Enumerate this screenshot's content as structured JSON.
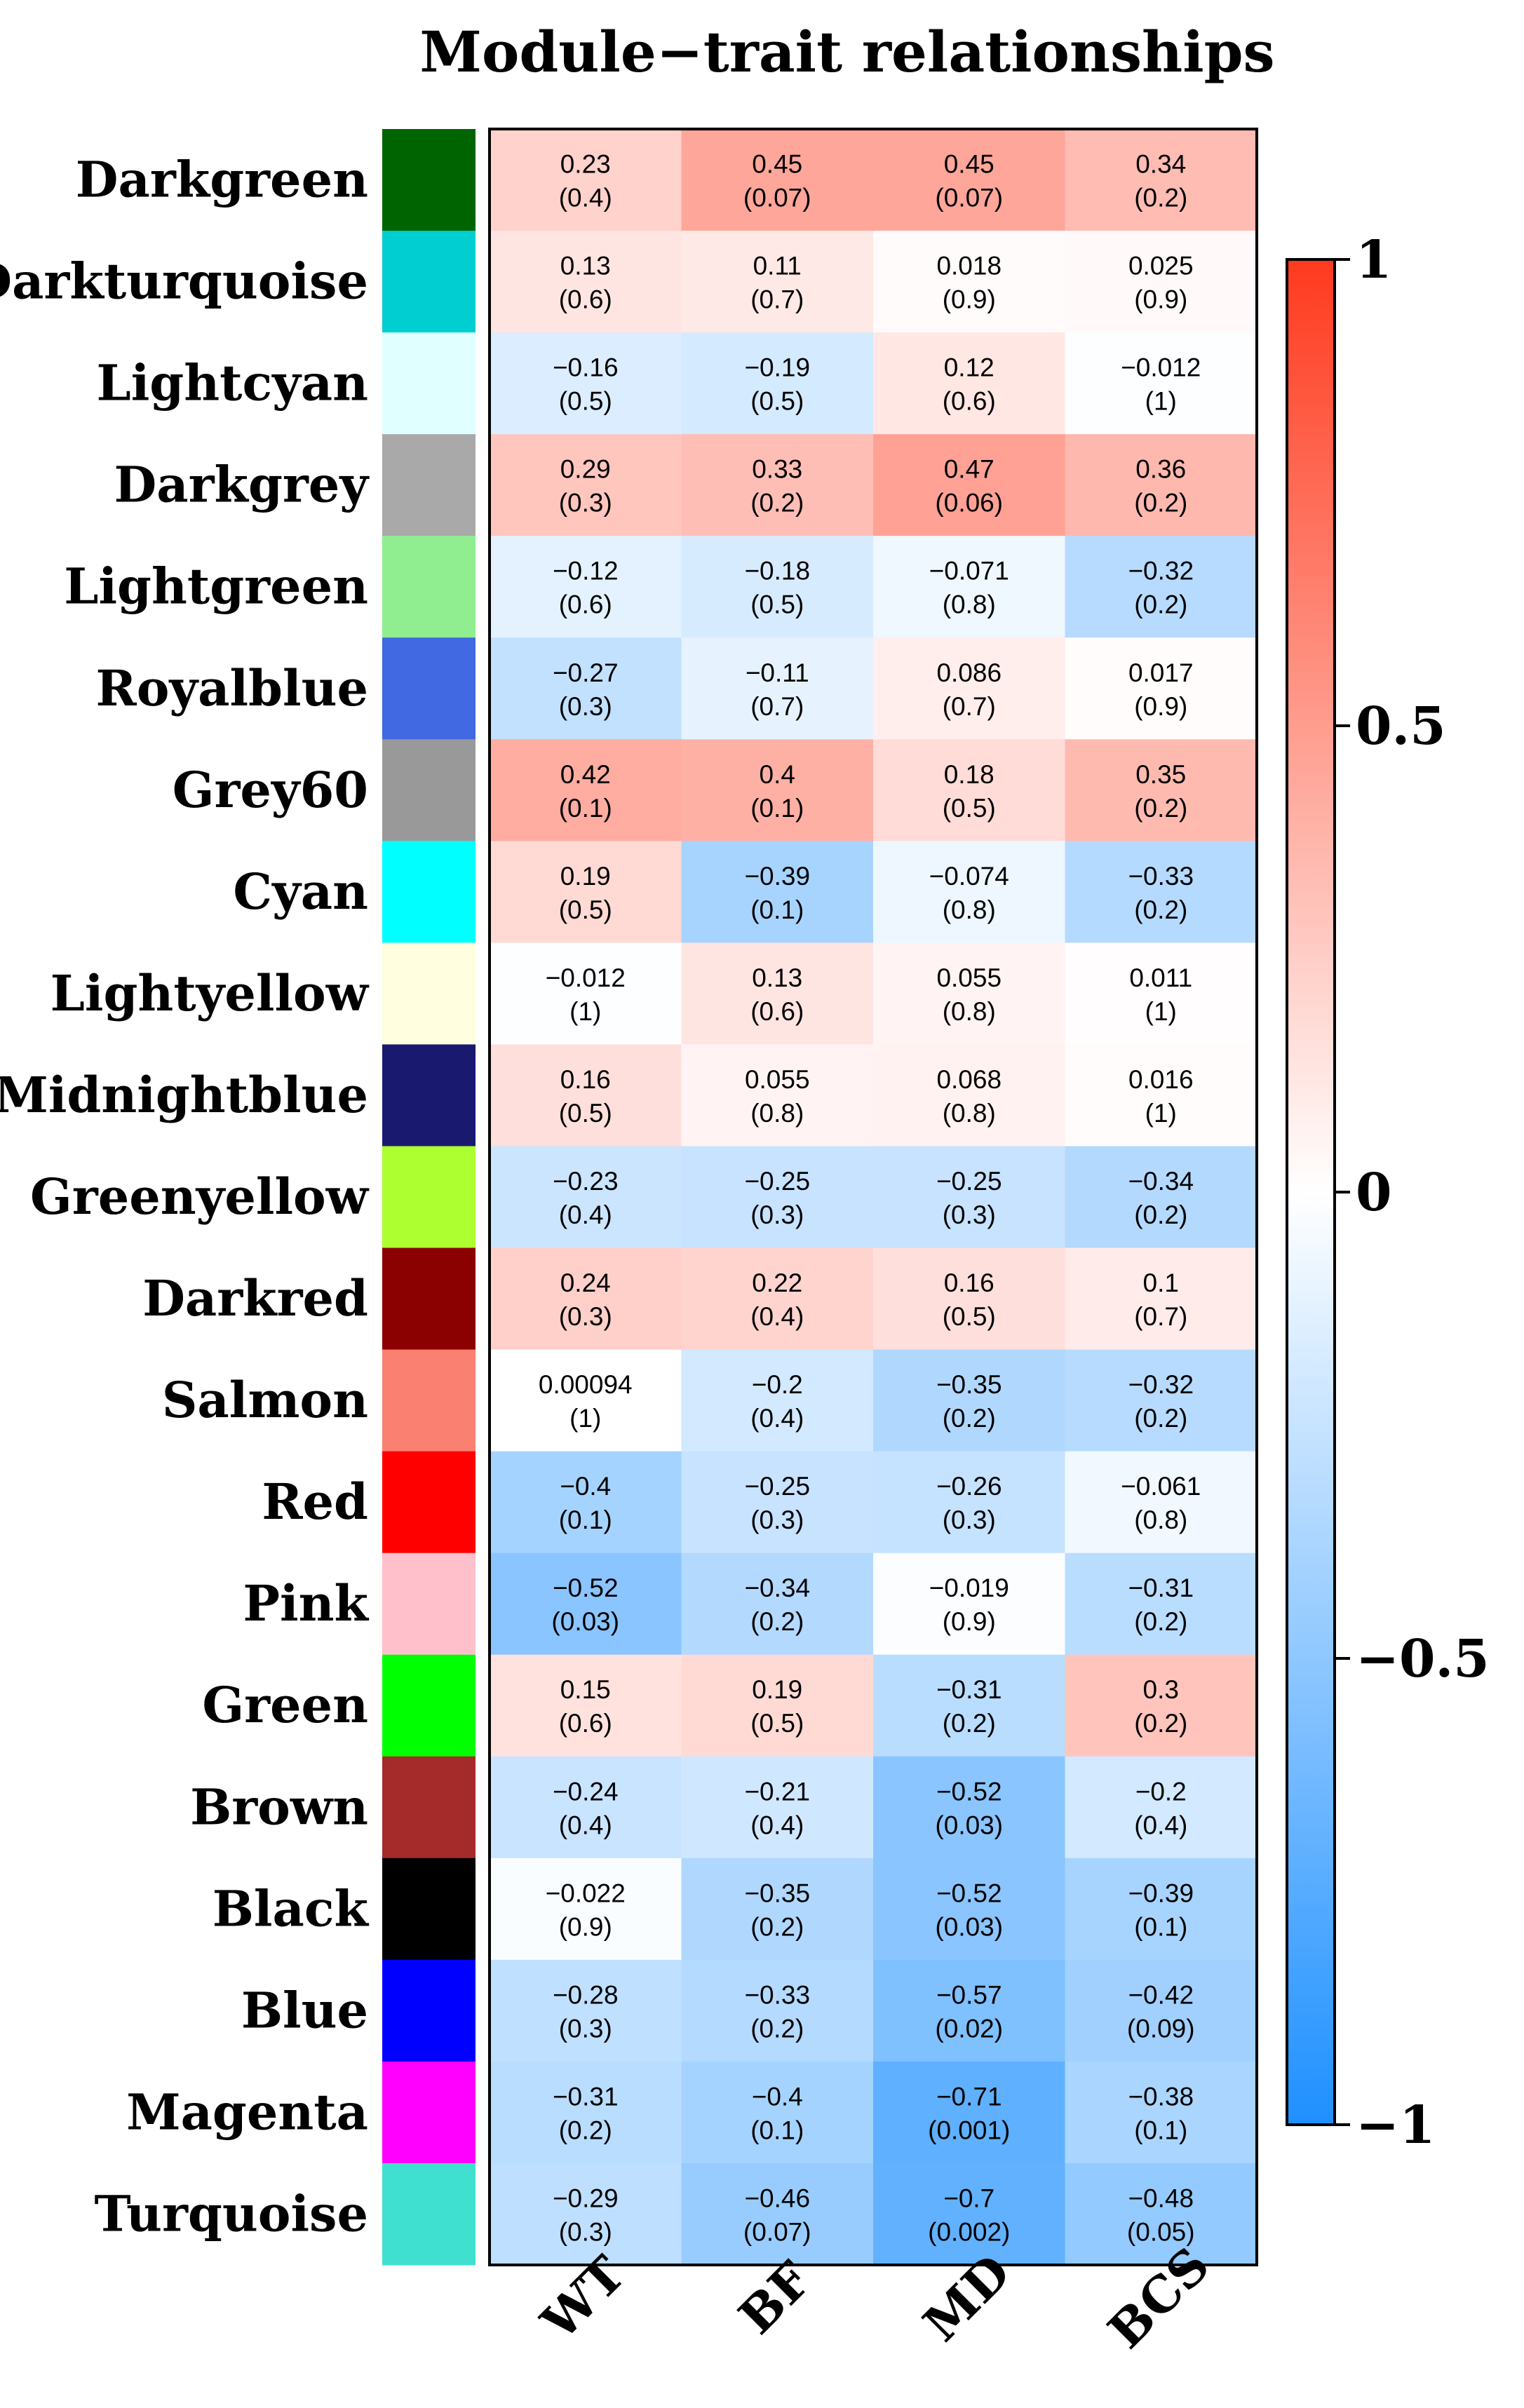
{
  "chart_data": {
    "type": "heatmap",
    "title": "Module−trait relationships",
    "rows": [
      "Darkgreen",
      "Darkturquoise",
      "Lightcyan",
      "Darkgrey",
      "Lightgreen",
      "Royalblue",
      "Grey60",
      "Cyan",
      "Lightyellow",
      "Midnightblue",
      "Greenyellow",
      "Darkred",
      "Salmon",
      "Red",
      "Pink",
      "Green",
      "Brown",
      "Black",
      "Blue",
      "Magenta",
      "Turquoise"
    ],
    "row_colors": [
      "#006400",
      "#00CED1",
      "#E0FFFF",
      "#A9A9A9",
      "#90EE90",
      "#4169E1",
      "#999999",
      "#00FFFF",
      "#FFFFE0",
      "#191970",
      "#ADFF2F",
      "#8B0000",
      "#FA8072",
      "#FF0000",
      "#FFC0CB",
      "#00FF00",
      "#A52A2A",
      "#000000",
      "#0000FF",
      "#FF00FF",
      "#40E0D0"
    ],
    "columns": [
      "WT",
      "BF",
      "MD",
      "BCS"
    ],
    "values": [
      [
        0.23,
        0.45,
        0.45,
        0.34
      ],
      [
        0.13,
        0.11,
        0.018,
        0.025
      ],
      [
        -0.16,
        -0.19,
        0.12,
        -0.012
      ],
      [
        0.29,
        0.33,
        0.47,
        0.36
      ],
      [
        -0.12,
        -0.18,
        -0.071,
        -0.32
      ],
      [
        -0.27,
        -0.11,
        0.086,
        0.017
      ],
      [
        0.42,
        0.4,
        0.18,
        0.35
      ],
      [
        0.19,
        -0.39,
        -0.074,
        -0.33
      ],
      [
        -0.012,
        0.13,
        0.055,
        0.011
      ],
      [
        0.16,
        0.055,
        0.068,
        0.016
      ],
      [
        -0.23,
        -0.25,
        -0.25,
        -0.34
      ],
      [
        0.24,
        0.22,
        0.16,
        0.1
      ],
      [
        0.00094,
        -0.2,
        -0.35,
        -0.32
      ],
      [
        -0.4,
        -0.25,
        -0.26,
        -0.061
      ],
      [
        -0.52,
        -0.34,
        -0.019,
        -0.31
      ],
      [
        0.15,
        0.19,
        -0.31,
        0.3
      ],
      [
        -0.24,
        -0.21,
        -0.52,
        -0.2
      ],
      [
        -0.022,
        -0.35,
        -0.52,
        -0.39
      ],
      [
        -0.28,
        -0.33,
        -0.57,
        -0.42
      ],
      [
        -0.31,
        -0.4,
        -0.71,
        -0.38
      ],
      [
        -0.29,
        -0.46,
        -0.7,
        -0.48
      ]
    ],
    "value_labels": [
      [
        "0.23",
        "0.45",
        "0.45",
        "0.34"
      ],
      [
        "0.13",
        "0.11",
        "0.018",
        "0.025"
      ],
      [
        "−0.16",
        "−0.19",
        "0.12",
        "−0.012"
      ],
      [
        "0.29",
        "0.33",
        "0.47",
        "0.36"
      ],
      [
        "−0.12",
        "−0.18",
        "−0.071",
        "−0.32"
      ],
      [
        "−0.27",
        "−0.11",
        "0.086",
        "0.017"
      ],
      [
        "0.42",
        "0.4",
        "0.18",
        "0.35"
      ],
      [
        "0.19",
        "−0.39",
        "−0.074",
        "−0.33"
      ],
      [
        "−0.012",
        "0.13",
        "0.055",
        "0.011"
      ],
      [
        "0.16",
        "0.055",
        "0.068",
        "0.016"
      ],
      [
        "−0.23",
        "−0.25",
        "−0.25",
        "−0.34"
      ],
      [
        "0.24",
        "0.22",
        "0.16",
        "0.1"
      ],
      [
        "0.00094",
        "−0.2",
        "−0.35",
        "−0.32"
      ],
      [
        "−0.4",
        "−0.25",
        "−0.26",
        "−0.061"
      ],
      [
        "−0.52",
        "−0.34",
        "−0.019",
        "−0.31"
      ],
      [
        "0.15",
        "0.19",
        "−0.31",
        "0.3"
      ],
      [
        "−0.24",
        "−0.21",
        "−0.52",
        "−0.2"
      ],
      [
        "−0.022",
        "−0.35",
        "−0.52",
        "−0.39"
      ],
      [
        "−0.28",
        "−0.33",
        "−0.57",
        "−0.42"
      ],
      [
        "−0.31",
        "−0.4",
        "−0.71",
        "−0.38"
      ],
      [
        "−0.29",
        "−0.46",
        "−0.7",
        "−0.48"
      ]
    ],
    "pvalues": [
      [
        "(0.4)",
        "(0.07)",
        "(0.07)",
        "(0.2)"
      ],
      [
        "(0.6)",
        "(0.7)",
        "(0.9)",
        "(0.9)"
      ],
      [
        "(0.5)",
        "(0.5)",
        "(0.6)",
        "(1)"
      ],
      [
        "(0.3)",
        "(0.2)",
        "(0.06)",
        "(0.2)"
      ],
      [
        "(0.6)",
        "(0.5)",
        "(0.8)",
        "(0.2)"
      ],
      [
        "(0.3)",
        "(0.7)",
        "(0.7)",
        "(0.9)"
      ],
      [
        "(0.1)",
        "(0.1)",
        "(0.5)",
        "(0.2)"
      ],
      [
        "(0.5)",
        "(0.1)",
        "(0.8)",
        "(0.2)"
      ],
      [
        "(1)",
        "(0.6)",
        "(0.8)",
        "(1)"
      ],
      [
        "(0.5)",
        "(0.8)",
        "(0.8)",
        "(1)"
      ],
      [
        "(0.4)",
        "(0.3)",
        "(0.3)",
        "(0.2)"
      ],
      [
        "(0.3)",
        "(0.4)",
        "(0.5)",
        "(0.7)"
      ],
      [
        "(1)",
        "(0.4)",
        "(0.2)",
        "(0.2)"
      ],
      [
        "(0.1)",
        "(0.3)",
        "(0.3)",
        "(0.8)"
      ],
      [
        "(0.03)",
        "(0.2)",
        "(0.9)",
        "(0.2)"
      ],
      [
        "(0.6)",
        "(0.5)",
        "(0.2)",
        "(0.2)"
      ],
      [
        "(0.4)",
        "(0.4)",
        "(0.03)",
        "(0.4)"
      ],
      [
        "(0.9)",
        "(0.2)",
        "(0.03)",
        "(0.1)"
      ],
      [
        "(0.3)",
        "(0.2)",
        "(0.02)",
        "(0.09)"
      ],
      [
        "(0.2)",
        "(0.1)",
        "(0.001)",
        "(0.1)"
      ],
      [
        "(0.3)",
        "(0.07)",
        "(0.002)",
        "(0.05)"
      ]
    ],
    "colorbar": {
      "range": [
        -1,
        1
      ],
      "ticks": [
        1,
        0.5,
        0,
        -0.5,
        -1
      ],
      "tick_labels": [
        "1",
        "0.5",
        "0",
        "−0.5",
        "−1"
      ],
      "low_color": "#1E90FF",
      "mid_color": "#FFFFFF",
      "high_color": "#FF3A1E"
    }
  }
}
